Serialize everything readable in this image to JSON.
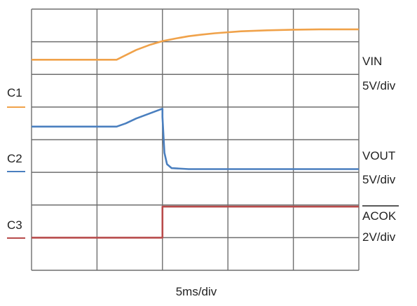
{
  "chart_data": {
    "type": "line",
    "title": "",
    "grid": true,
    "grid_divisions": {
      "x": 5,
      "y": 8
    },
    "x_axis": {
      "label": "5ms/div",
      "unit": "ms",
      "range": [
        0,
        25
      ]
    },
    "y_axis": {
      "unit": "div",
      "range": [
        0,
        8
      ]
    },
    "channels": [
      {
        "tag": "C1",
        "name": "VIN",
        "scale": "5V/div",
        "color": "#f0a24a"
      },
      {
        "tag": "C2",
        "name": "VOUT",
        "scale": "5V/div",
        "color": "#4a7fbf"
      },
      {
        "tag": "C3",
        "name": "ACOK",
        "name_overline": true,
        "scale": "2V/div",
        "color": "#b84b4b"
      }
    ],
    "series": [
      {
        "channel": "C1",
        "x": [
          0,
          6.5,
          7.0,
          8.0,
          9.0,
          10.0,
          11.0,
          12.0,
          13.0,
          14.0,
          16.0,
          18.0,
          20.0,
          22.0,
          24.0,
          25.0
        ],
        "y": [
          6.45,
          6.45,
          6.55,
          6.75,
          6.9,
          7.02,
          7.1,
          7.17,
          7.22,
          7.26,
          7.32,
          7.35,
          7.37,
          7.38,
          7.38,
          7.38
        ]
      },
      {
        "channel": "C2",
        "x": [
          0,
          6.5,
          7.2,
          8.0,
          9.0,
          10.0,
          10.0,
          10.15,
          10.35,
          10.7,
          12.0,
          25.0
        ],
        "y": [
          4.4,
          4.4,
          4.5,
          4.65,
          4.8,
          4.95,
          4.7,
          3.6,
          3.25,
          3.13,
          3.1,
          3.1
        ]
      },
      {
        "channel": "C3",
        "x": [
          0,
          10.0,
          10.0,
          25.0
        ],
        "y": [
          1.0,
          1.0,
          1.95,
          1.95
        ]
      }
    ]
  }
}
